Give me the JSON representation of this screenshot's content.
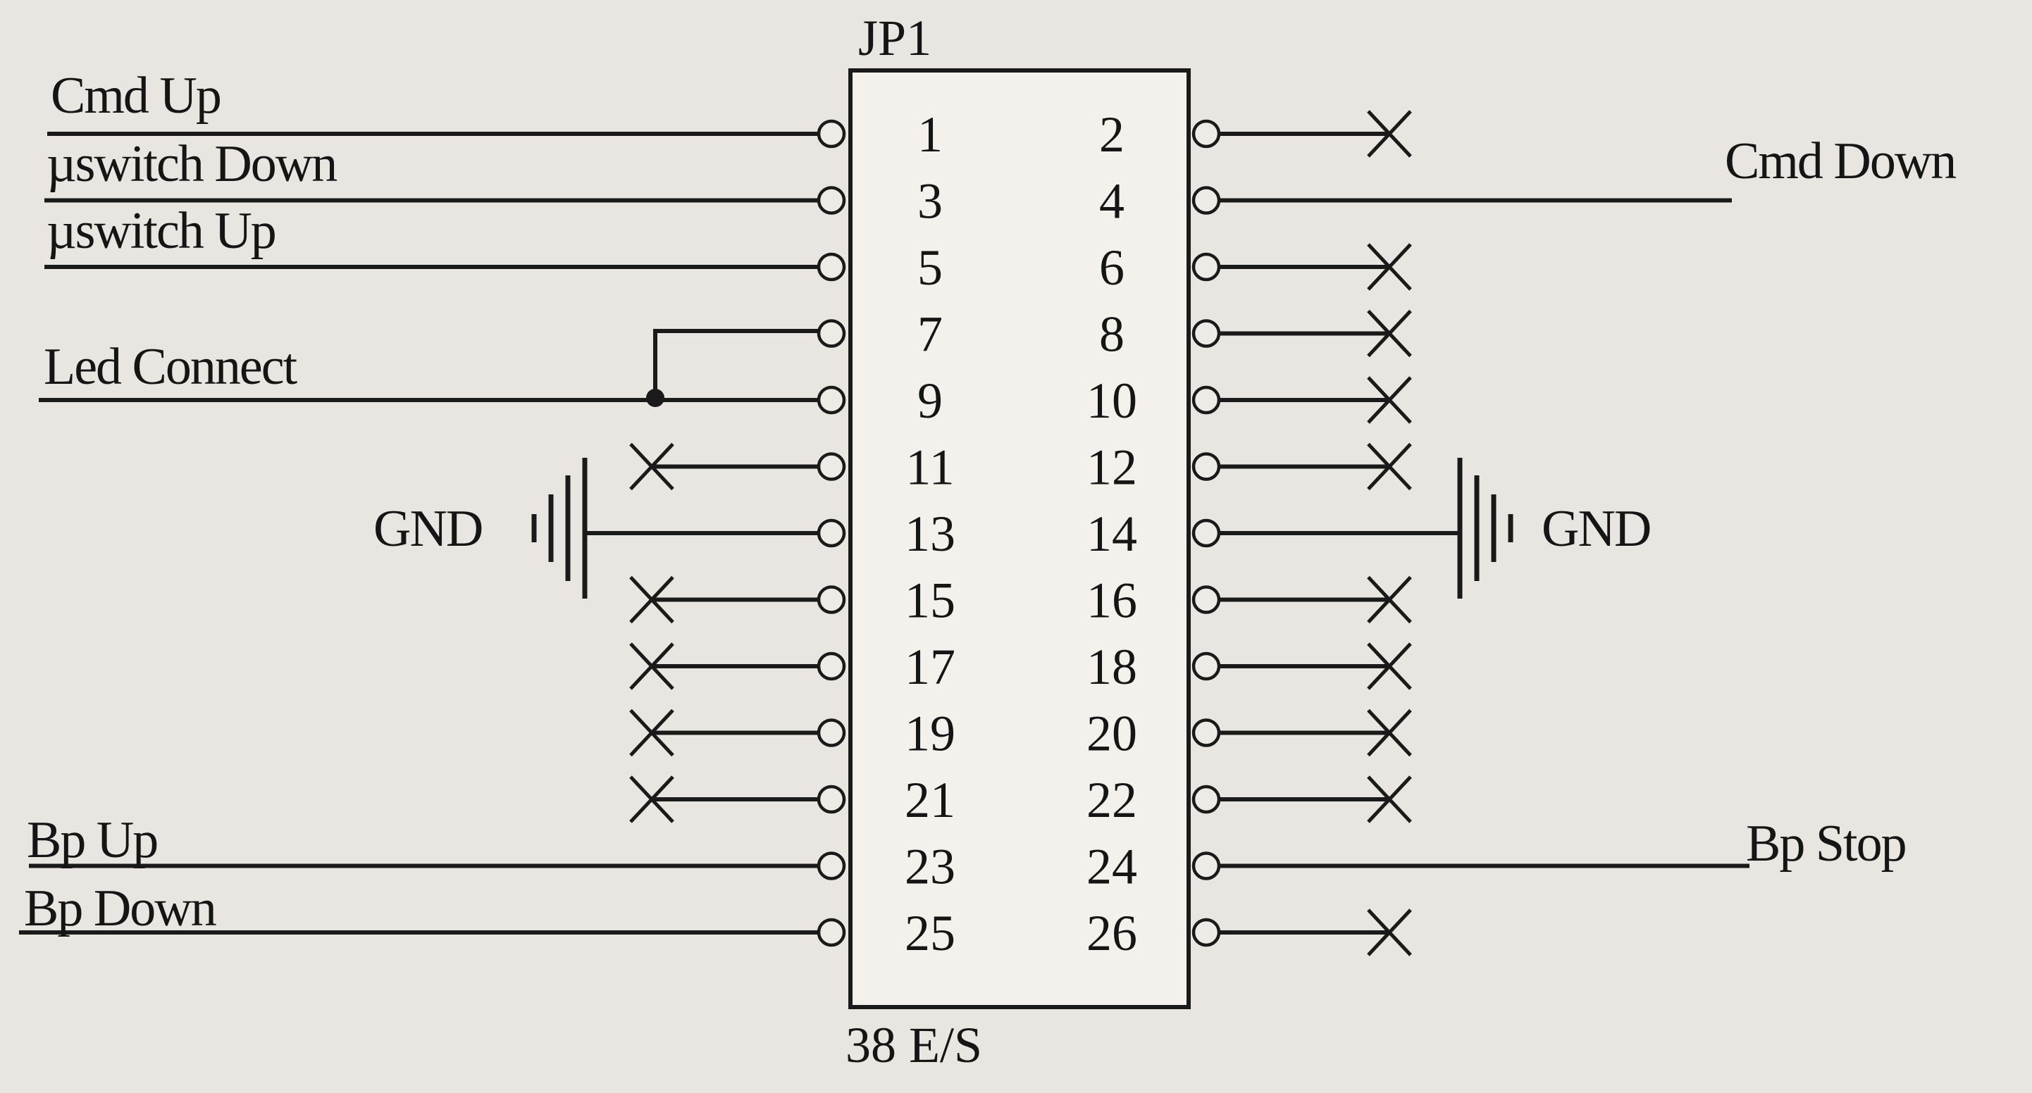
{
  "connector": {
    "name": "JP1",
    "part": "38 E/S",
    "pins_left": [
      "1",
      "3",
      "5",
      "7",
      "9",
      "11",
      "13",
      "15",
      "17",
      "19",
      "21",
      "23",
      "25"
    ],
    "pins_right": [
      "2",
      "4",
      "6",
      "8",
      "10",
      "12",
      "14",
      "16",
      "18",
      "20",
      "22",
      "24",
      "26"
    ]
  },
  "signals": {
    "cmd_up": "Cmd Up",
    "uswitch_down": "µswitch Down",
    "uswitch_up": "µswitch Up",
    "led_connect": "Led Connect",
    "gnd_left": "GND",
    "bp_up": "Bp Up",
    "bp_down": "Bp Down",
    "cmd_down": "Cmd Down",
    "gnd_right": "GND",
    "bp_stop": "Bp Stop"
  },
  "not_connected": {
    "left_pins": [
      "11",
      "15",
      "17",
      "19",
      "21"
    ],
    "right_pins": [
      "2",
      "6",
      "8",
      "10",
      "12",
      "16",
      "18",
      "20",
      "22",
      "26"
    ]
  },
  "colors": {
    "ink": "#1a1a1a",
    "paper": "#e9e5e0",
    "box_fill": "#f4f1ec"
  }
}
